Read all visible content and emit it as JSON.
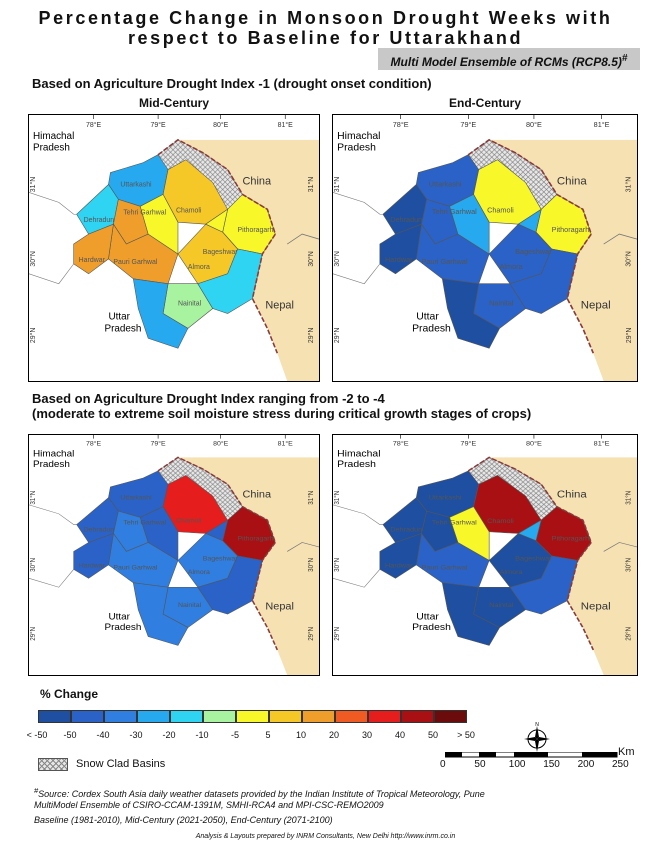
{
  "title_line1": "Percentage Change in Monsoon Drought Weeks with",
  "title_line2": "respect to Baseline for Uttarakhand",
  "ensemble_label": "Multi Model Ensemble of RCMs (RCP8.5)",
  "ensemble_sup": "#",
  "section1": "Based on Agriculture Drought Index -1 (drought onset condition)",
  "section2_line1": "Based on Agriculture Drought Index ranging from -2 to -4",
  "section2_line2": "(moderate to extreme soil moisture stress during critical growth stages of crops)",
  "panel_mid": "Mid-Century",
  "panel_end": "End-Century",
  "map_labels": {
    "himachal1": "Himachal",
    "himachal2": "Pradesh",
    "china": "China",
    "nepal": "Nepal",
    "uttar1": "Uttar",
    "uttar2": "Pradesh",
    "lon": [
      "78°E",
      "79°E",
      "80°E",
      "81°E"
    ],
    "lat": [
      "31°N",
      "30°N",
      "29°N"
    ],
    "districts": [
      "Uttarkashi",
      "Chamoli",
      "Pithoragarh",
      "Pauri Garhwal",
      "Almora",
      "Hardwar",
      "Nainital",
      "Bageshwar",
      "Dehradun",
      "Tehri Garhwal"
    ]
  },
  "legend": {
    "title": "% Change",
    "colors": [
      "#1e4fa0",
      "#2a62c7",
      "#2f7ee0",
      "#27a9ef",
      "#2fd4f3",
      "#a7f3a0",
      "#f7f72a",
      "#f5c828",
      "#ef9e2c",
      "#f05a23",
      "#e51d1d",
      "#a81014",
      "#6b0b0b"
    ],
    "labels": [
      "< -50",
      "-50",
      "-40",
      "-30",
      "-20",
      "-10",
      "-5",
      "5",
      "10",
      "20",
      "30",
      "40",
      "50",
      "> 50"
    ]
  },
  "scale": {
    "unit": "Km",
    "ticks": [
      "0",
      "50",
      "100",
      "150",
      "200",
      "250"
    ]
  },
  "snow_label": "Snow Clad Basins",
  "source_line1": "Source: Cordex South Asia daily weather datasets provided by the Indian Institute of Tropical Meteorology, Pune",
  "source_mark": "#",
  "source_line2": "MultiModel Ensemble of CSIRO-CCAM-1391M, SMHI-RCA4 and MPI-CSC-REMO2009",
  "source_line3": "Baseline (1981-2010), Mid-Century (2021-2050), End-Century (2071-2100)",
  "credit": "Analysis & Layouts prepared by INRM Consultants, New Delhi http://www.inrm.co.in",
  "compass_n": "N"
}
